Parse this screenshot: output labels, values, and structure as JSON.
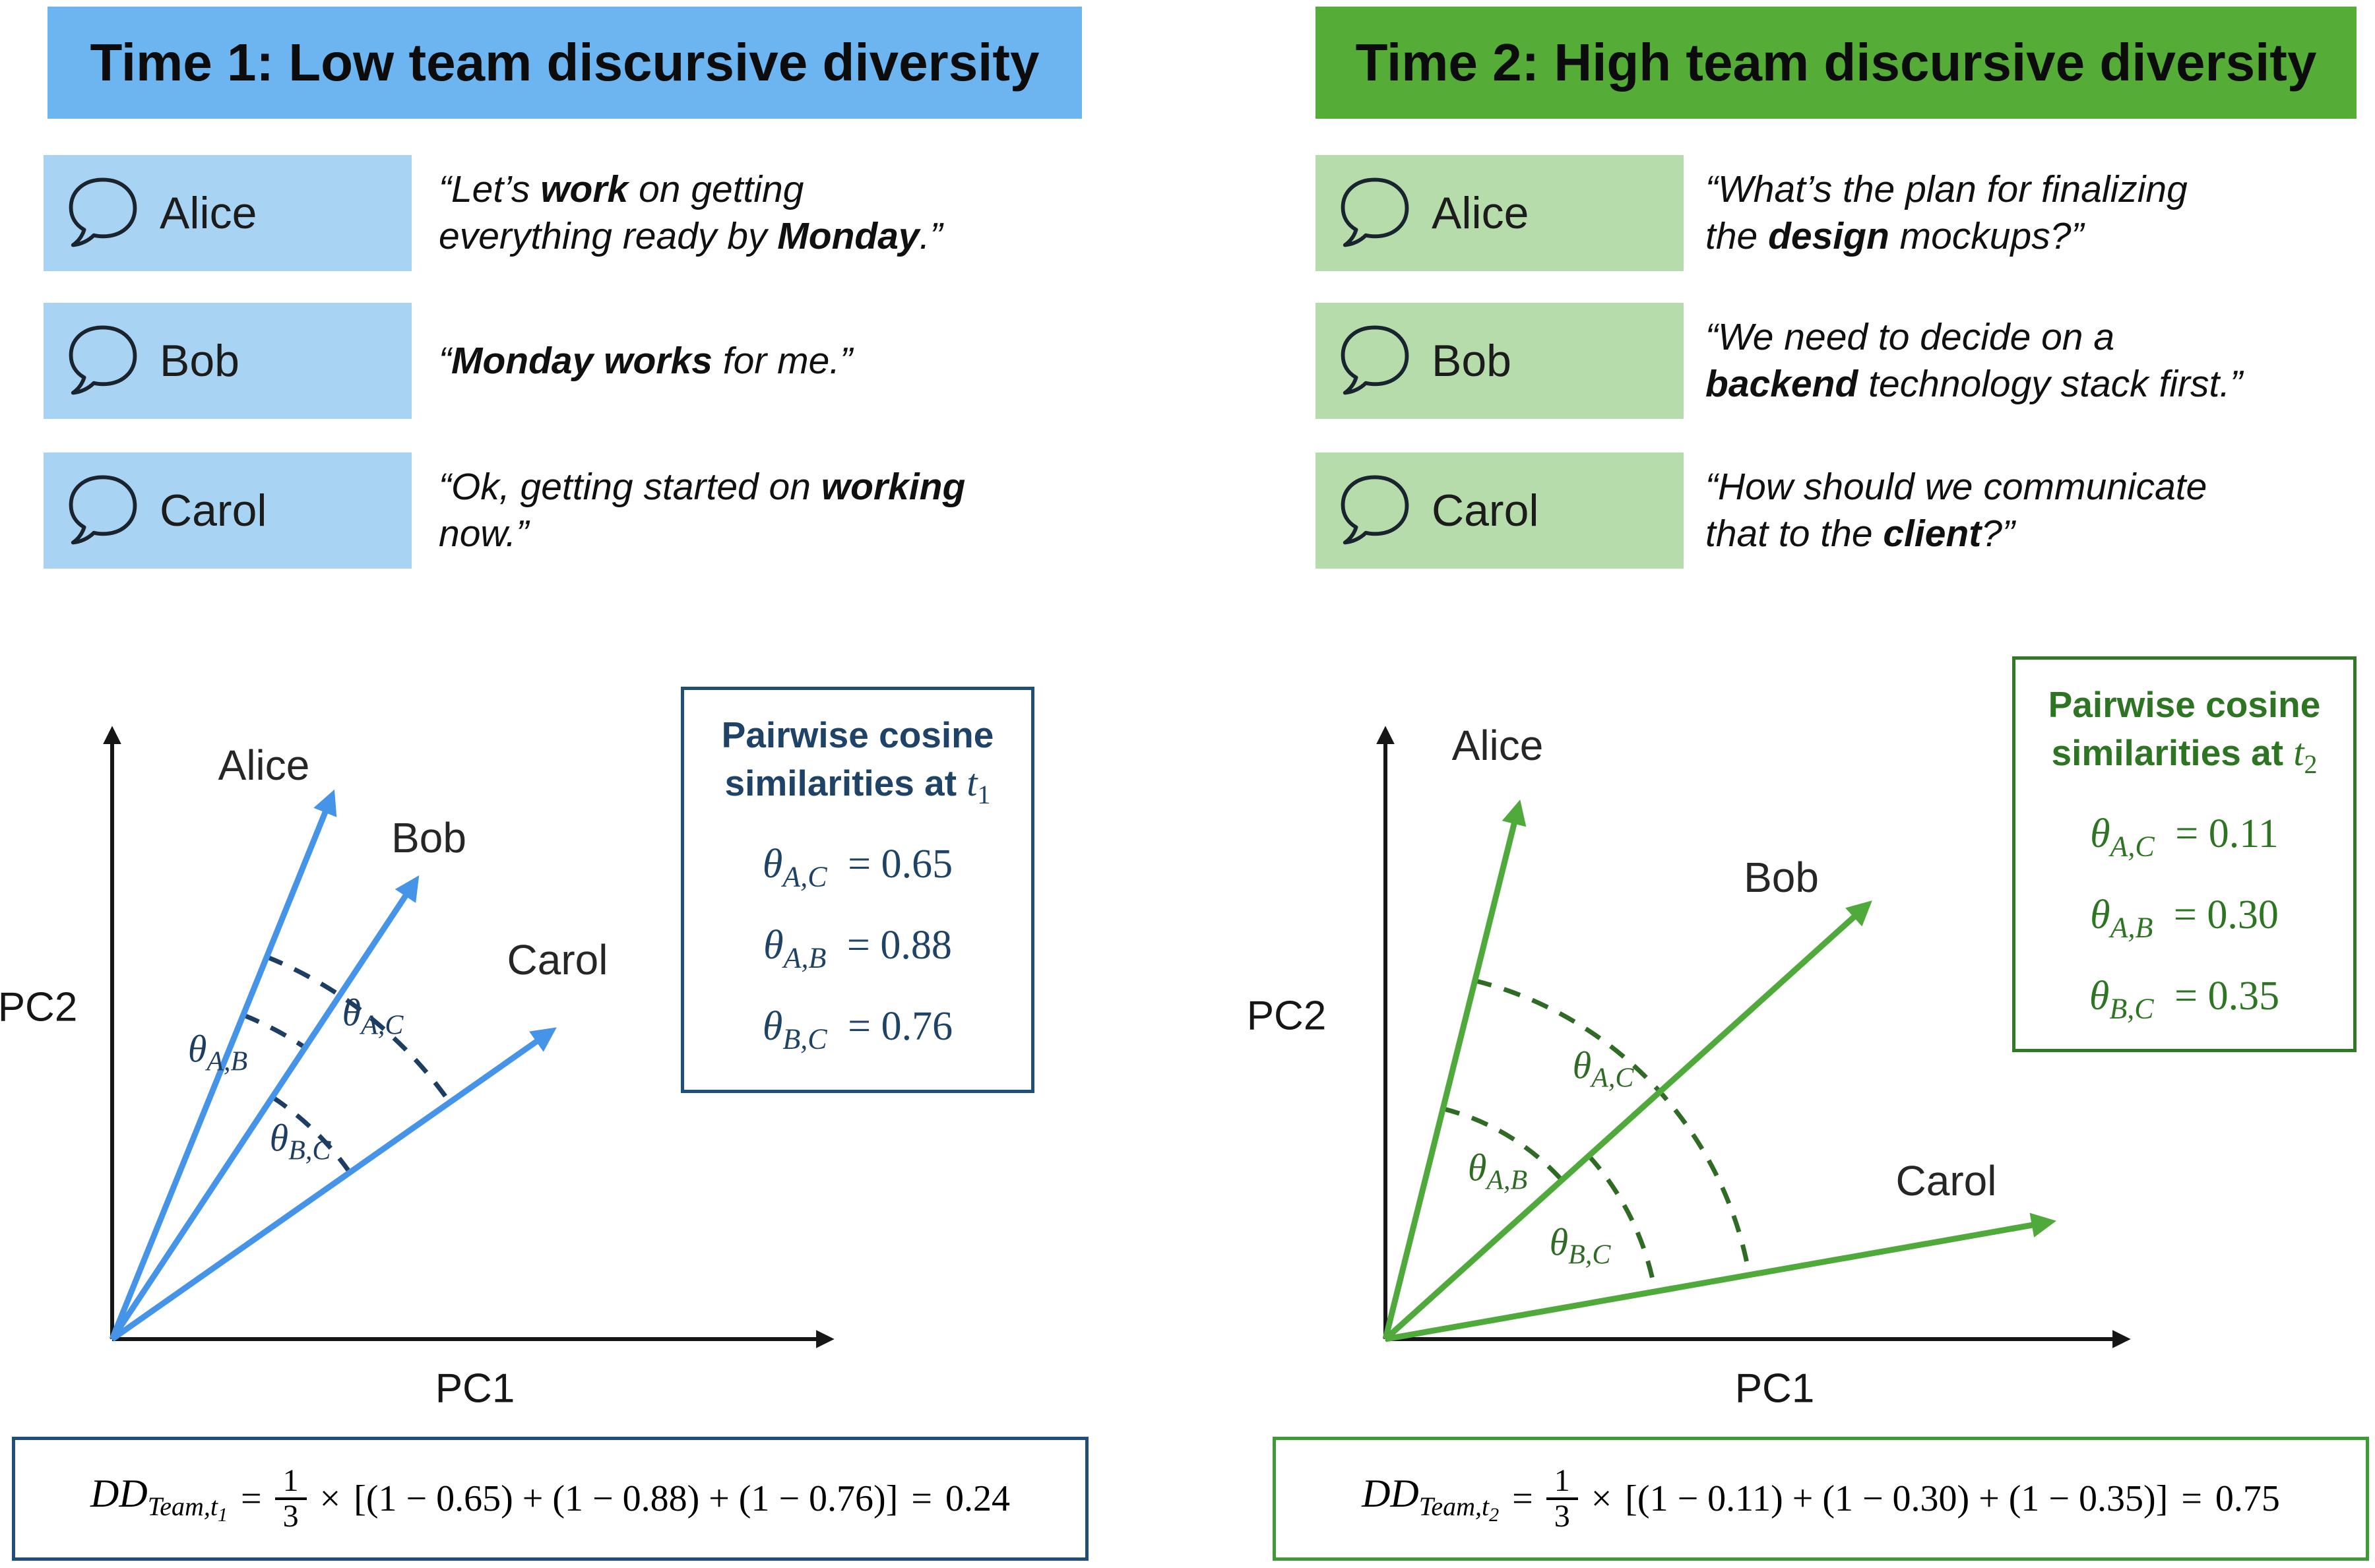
{
  "colors": {
    "banner_blue": "#6CB5F0",
    "row_blue": "#A9D3F2",
    "vector_blue": "#4694E8",
    "navy": "#1F4366",
    "navy_border": "#1F4E79",
    "banner_green": "#55AD37",
    "row_green": "#B7DCAB",
    "vector_green": "#4FA93B",
    "green_dark": "#2F7A24"
  },
  "left": {
    "title": "Time 1: Low team discursive diversity",
    "messages": [
      {
        "name": "Alice",
        "lines": [
          [
            {
              "t": "“Let’s "
            },
            {
              "t": "work",
              "b": true
            },
            {
              "t": " on getting"
            }
          ],
          [
            {
              "t": "everything ready by "
            },
            {
              "t": "Monday",
              "b": true
            },
            {
              "t": ".”"
            }
          ]
        ]
      },
      {
        "name": "Bob",
        "lines": [
          [
            {
              "t": "“"
            },
            {
              "t": "Monday works",
              "b": true
            },
            {
              "t": " for me.”"
            }
          ],
          []
        ]
      },
      {
        "name": "Carol",
        "lines": [
          [
            {
              "t": "“Ok, getting started on "
            },
            {
              "t": "working",
              "b": true
            }
          ],
          [
            {
              "t": "now.”"
            }
          ]
        ]
      }
    ],
    "plot": {
      "pc1": "PC1",
      "pc2": "PC2",
      "vector_labels": [
        "Alice",
        "Bob",
        "Carol"
      ],
      "angles": [
        {
          "sym": "θ",
          "sub": "A,B"
        },
        {
          "sym": "θ",
          "sub": "A,C"
        },
        {
          "sym": "θ",
          "sub": "B,C"
        }
      ]
    },
    "simbox": {
      "title1": "Pairwise cosine",
      "title2": "similarities at ",
      "t": "t",
      "tsub": "1",
      "rows": [
        {
          "sym": "θ",
          "sub": "A,C",
          "rhs": "= 0.65"
        },
        {
          "sym": "θ",
          "sub": "A,B",
          "rhs": "= 0.88"
        },
        {
          "sym": "θ",
          "sub": "B,C",
          "rhs": "= 0.76"
        }
      ]
    },
    "formula": {
      "lhs": "DD",
      "lhs_sub": "Team,t",
      "lhs_sub2": "1",
      "eq": "=",
      "num": "1",
      "den": "3",
      "op": "×",
      "body": "[(1 − 0.65) + (1 − 0.88) + (1 − 0.76)]",
      "eq2": "=",
      "result": "0.24"
    }
  },
  "right": {
    "title": "Time 2: High team discursive diversity",
    "messages": [
      {
        "name": "Alice",
        "lines": [
          [
            {
              "t": "“What’s the plan for finalizing"
            }
          ],
          [
            {
              "t": "the "
            },
            {
              "t": "design",
              "b": true
            },
            {
              "t": " mockups?”"
            }
          ]
        ]
      },
      {
        "name": "Bob",
        "lines": [
          [
            {
              "t": "“We need to decide on a"
            }
          ],
          [
            {
              "t": "backend",
              "b": true
            },
            {
              "t": " technology stack first.”"
            }
          ]
        ]
      },
      {
        "name": "Carol",
        "lines": [
          [
            {
              "t": "“How should we communicate"
            }
          ],
          [
            {
              "t": "that to the "
            },
            {
              "t": "client",
              "b": true
            },
            {
              "t": "?”"
            }
          ]
        ]
      }
    ],
    "plot": {
      "pc1": "PC1",
      "pc2": "PC2",
      "vector_labels": [
        "Alice",
        "Bob",
        "Carol"
      ],
      "angles": [
        {
          "sym": "θ",
          "sub": "A,C"
        },
        {
          "sym": "θ",
          "sub": "A,B"
        },
        {
          "sym": "θ",
          "sub": "B,C"
        }
      ]
    },
    "simbox": {
      "title1": "Pairwise cosine",
      "title2": "similarities at ",
      "t": "t",
      "tsub": "2",
      "rows": [
        {
          "sym": "θ",
          "sub": "A,C",
          "rhs": "= 0.11"
        },
        {
          "sym": "θ",
          "sub": "A,B",
          "rhs": "= 0.30"
        },
        {
          "sym": "θ",
          "sub": "B,C",
          "rhs": "= 0.35"
        }
      ]
    },
    "formula": {
      "lhs": "DD",
      "lhs_sub": "Team,t",
      "lhs_sub2": "2",
      "eq": "=",
      "num": "1",
      "den": "3",
      "op": "×",
      "body": "[(1 − 0.11) + (1 − 0.30) + (1 − 0.35)]",
      "eq2": "=",
      "result": "0.75"
    }
  }
}
